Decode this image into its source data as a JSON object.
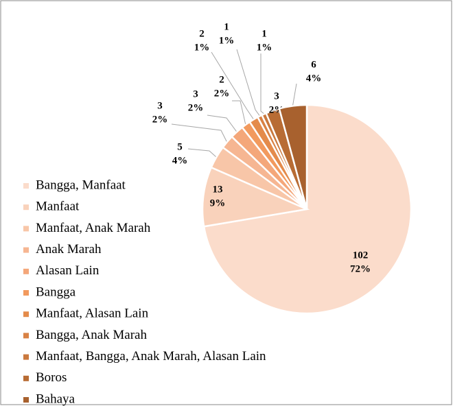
{
  "chart_data": {
    "type": "pie",
    "categories": [
      "Bangga, Manfaat",
      "Manfaat",
      "Manfaat, Anak Marah",
      "Anak Marah",
      "Alasan Lain",
      "Bangga",
      "Manfaat, Alasan Lain",
      "Bangga, Anak Marah",
      "Manfaat, Bangga, Anak Marah, Alasan Lain",
      "Boros",
      "Bahaya"
    ],
    "values": [
      102,
      13,
      5,
      3,
      3,
      2,
      2,
      1,
      1,
      3,
      6
    ],
    "percent_labels": [
      "72%",
      "9%",
      "4%",
      "2%",
      "2%",
      "2%",
      "1%",
      "1%",
      "1%",
      "2%",
      "4%"
    ],
    "colors": [
      "#fbdccb",
      "#f9d2bb",
      "#f8c6a8",
      "#f6b692",
      "#f4a77a",
      "#f29a5e",
      "#e48b4b",
      "#d98245",
      "#ca793e",
      "#b86c34",
      "#a8612e"
    ],
    "legend": "left"
  }
}
